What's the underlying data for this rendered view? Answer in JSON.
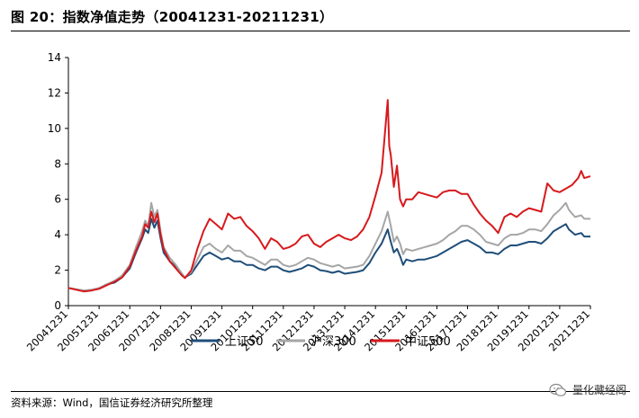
{
  "header": {
    "title": "图 20：指数净值走势（20041231-20211231）"
  },
  "footer": {
    "source": "资料来源：Wind，国信证券经济研究所整理",
    "brand": "量化藏经阁"
  },
  "chart_data": {
    "type": "line",
    "ylim": [
      0,
      14
    ],
    "yticks": [
      0,
      2,
      4,
      6,
      8,
      10,
      12,
      14
    ],
    "x": [
      "20041231",
      "20051231",
      "20061231",
      "20071231",
      "20081231",
      "20091231",
      "20101231",
      "20111231",
      "20121231",
      "20131231",
      "20141231",
      "20151231",
      "20161231",
      "20171231",
      "20181231",
      "20191231",
      "20201231",
      "20211231"
    ],
    "grid": false,
    "legend_position": "bottom-center",
    "series": [
      {
        "name": "上证50",
        "color": "#1f4e79",
        "values": [
          [
            0,
            1.0
          ],
          [
            0.25,
            0.92
          ],
          [
            0.5,
            0.85
          ],
          [
            0.75,
            0.88
          ],
          [
            1.0,
            0.98
          ],
          [
            1.25,
            1.2
          ],
          [
            1.5,
            1.3
          ],
          [
            1.75,
            1.6
          ],
          [
            2.0,
            2.1
          ],
          [
            2.2,
            3.0
          ],
          [
            2.4,
            3.8
          ],
          [
            2.5,
            4.3
          ],
          [
            2.6,
            4.1
          ],
          [
            2.7,
            4.9
          ],
          [
            2.8,
            4.4
          ],
          [
            2.9,
            4.8
          ],
          [
            3.0,
            3.8
          ],
          [
            3.1,
            3.0
          ],
          [
            3.3,
            2.5
          ],
          [
            3.5,
            2.2
          ],
          [
            3.7,
            1.7
          ],
          [
            3.8,
            1.6
          ],
          [
            4.0,
            1.8
          ],
          [
            4.2,
            2.3
          ],
          [
            4.4,
            2.8
          ],
          [
            4.6,
            3.0
          ],
          [
            4.8,
            2.8
          ],
          [
            5.0,
            2.6
          ],
          [
            5.2,
            2.7
          ],
          [
            5.4,
            2.5
          ],
          [
            5.6,
            2.5
          ],
          [
            5.8,
            2.3
          ],
          [
            6.0,
            2.3
          ],
          [
            6.2,
            2.1
          ],
          [
            6.4,
            2.0
          ],
          [
            6.6,
            2.2
          ],
          [
            6.8,
            2.2
          ],
          [
            7.0,
            2.0
          ],
          [
            7.2,
            1.9
          ],
          [
            7.4,
            2.0
          ],
          [
            7.6,
            2.1
          ],
          [
            7.8,
            2.3
          ],
          [
            8.0,
            2.2
          ],
          [
            8.2,
            2.0
          ],
          [
            8.4,
            1.95
          ],
          [
            8.6,
            1.85
          ],
          [
            8.8,
            1.95
          ],
          [
            9.0,
            1.8
          ],
          [
            9.2,
            1.85
          ],
          [
            9.4,
            1.9
          ],
          [
            9.6,
            2.0
          ],
          [
            9.8,
            2.4
          ],
          [
            10.0,
            3.0
          ],
          [
            10.2,
            3.5
          ],
          [
            10.4,
            4.3
          ],
          [
            10.5,
            3.6
          ],
          [
            10.6,
            3.0
          ],
          [
            10.7,
            3.2
          ],
          [
            10.8,
            2.8
          ],
          [
            10.9,
            2.3
          ],
          [
            11.0,
            2.6
          ],
          [
            11.2,
            2.5
          ],
          [
            11.4,
            2.6
          ],
          [
            11.6,
            2.6
          ],
          [
            11.8,
            2.7
          ],
          [
            12.0,
            2.8
          ],
          [
            12.2,
            3.0
          ],
          [
            12.4,
            3.2
          ],
          [
            12.6,
            3.4
          ],
          [
            12.8,
            3.6
          ],
          [
            13.0,
            3.7
          ],
          [
            13.2,
            3.5
          ],
          [
            13.4,
            3.3
          ],
          [
            13.6,
            3.0
          ],
          [
            13.8,
            3.0
          ],
          [
            14.0,
            2.9
          ],
          [
            14.2,
            3.2
          ],
          [
            14.4,
            3.4
          ],
          [
            14.6,
            3.4
          ],
          [
            14.8,
            3.5
          ],
          [
            15.0,
            3.6
          ],
          [
            15.2,
            3.6
          ],
          [
            15.4,
            3.5
          ],
          [
            15.6,
            3.8
          ],
          [
            15.8,
            4.2
          ],
          [
            16.0,
            4.4
          ],
          [
            16.2,
            4.6
          ],
          [
            16.3,
            4.3
          ],
          [
            16.5,
            4.0
          ],
          [
            16.7,
            4.1
          ],
          [
            16.8,
            3.9
          ],
          [
            17.0,
            3.9
          ]
        ]
      },
      {
        "name": "沪深300",
        "color": "#a6a6a6",
        "values": [
          [
            0,
            1.0
          ],
          [
            0.25,
            0.93
          ],
          [
            0.5,
            0.85
          ],
          [
            0.75,
            0.9
          ],
          [
            1.0,
            1.0
          ],
          [
            1.25,
            1.2
          ],
          [
            1.5,
            1.4
          ],
          [
            1.75,
            1.7
          ],
          [
            2.0,
            2.3
          ],
          [
            2.2,
            3.3
          ],
          [
            2.4,
            4.2
          ],
          [
            2.5,
            4.8
          ],
          [
            2.6,
            4.5
          ],
          [
            2.7,
            5.8
          ],
          [
            2.8,
            5.0
          ],
          [
            2.9,
            5.4
          ],
          [
            3.0,
            4.2
          ],
          [
            3.1,
            3.3
          ],
          [
            3.3,
            2.7
          ],
          [
            3.5,
            2.3
          ],
          [
            3.7,
            1.8
          ],
          [
            3.8,
            1.6
          ],
          [
            4.0,
            1.9
          ],
          [
            4.2,
            2.6
          ],
          [
            4.4,
            3.3
          ],
          [
            4.6,
            3.5
          ],
          [
            4.8,
            3.2
          ],
          [
            5.0,
            3.0
          ],
          [
            5.2,
            3.4
          ],
          [
            5.4,
            3.1
          ],
          [
            5.6,
            3.1
          ],
          [
            5.8,
            2.8
          ],
          [
            6.0,
            2.7
          ],
          [
            6.2,
            2.5
          ],
          [
            6.4,
            2.3
          ],
          [
            6.6,
            2.6
          ],
          [
            6.8,
            2.6
          ],
          [
            7.0,
            2.3
          ],
          [
            7.2,
            2.2
          ],
          [
            7.4,
            2.3
          ],
          [
            7.6,
            2.5
          ],
          [
            7.8,
            2.7
          ],
          [
            8.0,
            2.6
          ],
          [
            8.2,
            2.4
          ],
          [
            8.4,
            2.3
          ],
          [
            8.6,
            2.2
          ],
          [
            8.8,
            2.3
          ],
          [
            9.0,
            2.1
          ],
          [
            9.2,
            2.15
          ],
          [
            9.4,
            2.2
          ],
          [
            9.6,
            2.3
          ],
          [
            9.8,
            2.8
          ],
          [
            10.0,
            3.5
          ],
          [
            10.2,
            4.2
          ],
          [
            10.4,
            5.3
          ],
          [
            10.5,
            4.5
          ],
          [
            10.6,
            3.6
          ],
          [
            10.7,
            3.9
          ],
          [
            10.8,
            3.5
          ],
          [
            10.9,
            2.9
          ],
          [
            11.0,
            3.2
          ],
          [
            11.2,
            3.1
          ],
          [
            11.4,
            3.2
          ],
          [
            11.6,
            3.3
          ],
          [
            11.8,
            3.4
          ],
          [
            12.0,
            3.5
          ],
          [
            12.2,
            3.7
          ],
          [
            12.4,
            4.0
          ],
          [
            12.6,
            4.2
          ],
          [
            12.8,
            4.5
          ],
          [
            13.0,
            4.5
          ],
          [
            13.2,
            4.3
          ],
          [
            13.4,
            4.0
          ],
          [
            13.6,
            3.6
          ],
          [
            13.8,
            3.5
          ],
          [
            14.0,
            3.4
          ],
          [
            14.2,
            3.8
          ],
          [
            14.4,
            4.0
          ],
          [
            14.6,
            4.0
          ],
          [
            14.8,
            4.1
          ],
          [
            15.0,
            4.3
          ],
          [
            15.2,
            4.3
          ],
          [
            15.4,
            4.2
          ],
          [
            15.6,
            4.6
          ],
          [
            15.8,
            5.1
          ],
          [
            16.0,
            5.4
          ],
          [
            16.2,
            5.8
          ],
          [
            16.3,
            5.4
          ],
          [
            16.5,
            5.0
          ],
          [
            16.7,
            5.1
          ],
          [
            16.8,
            4.9
          ],
          [
            17.0,
            4.9
          ]
        ]
      },
      {
        "name": "中证500",
        "color": "#d7191c",
        "values": [
          [
            0,
            1.0
          ],
          [
            0.25,
            0.9
          ],
          [
            0.5,
            0.8
          ],
          [
            0.75,
            0.85
          ],
          [
            1.0,
            0.95
          ],
          [
            1.25,
            1.15
          ],
          [
            1.5,
            1.35
          ],
          [
            1.75,
            1.6
          ],
          [
            2.0,
            2.2
          ],
          [
            2.2,
            3.1
          ],
          [
            2.4,
            3.9
          ],
          [
            2.5,
            4.6
          ],
          [
            2.6,
            4.4
          ],
          [
            2.7,
            5.3
          ],
          [
            2.8,
            4.7
          ],
          [
            2.9,
            5.2
          ],
          [
            3.0,
            4.0
          ],
          [
            3.1,
            3.2
          ],
          [
            3.3,
            2.5
          ],
          [
            3.5,
            2.1
          ],
          [
            3.7,
            1.7
          ],
          [
            3.8,
            1.55
          ],
          [
            4.0,
            2.0
          ],
          [
            4.2,
            3.2
          ],
          [
            4.4,
            4.2
          ],
          [
            4.6,
            4.9
          ],
          [
            4.8,
            4.6
          ],
          [
            5.0,
            4.3
          ],
          [
            5.2,
            5.2
          ],
          [
            5.4,
            4.9
          ],
          [
            5.6,
            5.0
          ],
          [
            5.8,
            4.5
          ],
          [
            6.0,
            4.2
          ],
          [
            6.2,
            3.8
          ],
          [
            6.4,
            3.2
          ],
          [
            6.6,
            3.8
          ],
          [
            6.8,
            3.6
          ],
          [
            7.0,
            3.2
          ],
          [
            7.2,
            3.3
          ],
          [
            7.4,
            3.5
          ],
          [
            7.6,
            3.9
          ],
          [
            7.8,
            4.0
          ],
          [
            8.0,
            3.5
          ],
          [
            8.2,
            3.3
          ],
          [
            8.4,
            3.6
          ],
          [
            8.6,
            3.8
          ],
          [
            8.8,
            4.0
          ],
          [
            9.0,
            3.8
          ],
          [
            9.2,
            3.7
          ],
          [
            9.4,
            3.9
          ],
          [
            9.6,
            4.3
          ],
          [
            9.8,
            5.0
          ],
          [
            10.0,
            6.2
          ],
          [
            10.2,
            7.5
          ],
          [
            10.4,
            11.6
          ],
          [
            10.45,
            9.0
          ],
          [
            10.5,
            8.5
          ],
          [
            10.6,
            6.7
          ],
          [
            10.7,
            7.9
          ],
          [
            10.8,
            6.0
          ],
          [
            10.9,
            5.6
          ],
          [
            11.0,
            6.0
          ],
          [
            11.2,
            6.0
          ],
          [
            11.4,
            6.4
          ],
          [
            11.6,
            6.3
          ],
          [
            11.8,
            6.2
          ],
          [
            12.0,
            6.1
          ],
          [
            12.2,
            6.4
          ],
          [
            12.4,
            6.5
          ],
          [
            12.6,
            6.5
          ],
          [
            12.8,
            6.3
          ],
          [
            13.0,
            6.3
          ],
          [
            13.2,
            5.7
          ],
          [
            13.4,
            5.2
          ],
          [
            13.6,
            4.8
          ],
          [
            13.8,
            4.5
          ],
          [
            14.0,
            4.1
          ],
          [
            14.2,
            5.0
          ],
          [
            14.4,
            5.2
          ],
          [
            14.6,
            5.0
          ],
          [
            14.8,
            5.3
          ],
          [
            15.0,
            5.5
          ],
          [
            15.2,
            5.4
          ],
          [
            15.4,
            5.3
          ],
          [
            15.6,
            6.9
          ],
          [
            15.8,
            6.5
          ],
          [
            16.0,
            6.4
          ],
          [
            16.2,
            6.6
          ],
          [
            16.4,
            6.8
          ],
          [
            16.6,
            7.2
          ],
          [
            16.7,
            7.6
          ],
          [
            16.8,
            7.2
          ],
          [
            17.0,
            7.3
          ]
        ]
      }
    ]
  }
}
